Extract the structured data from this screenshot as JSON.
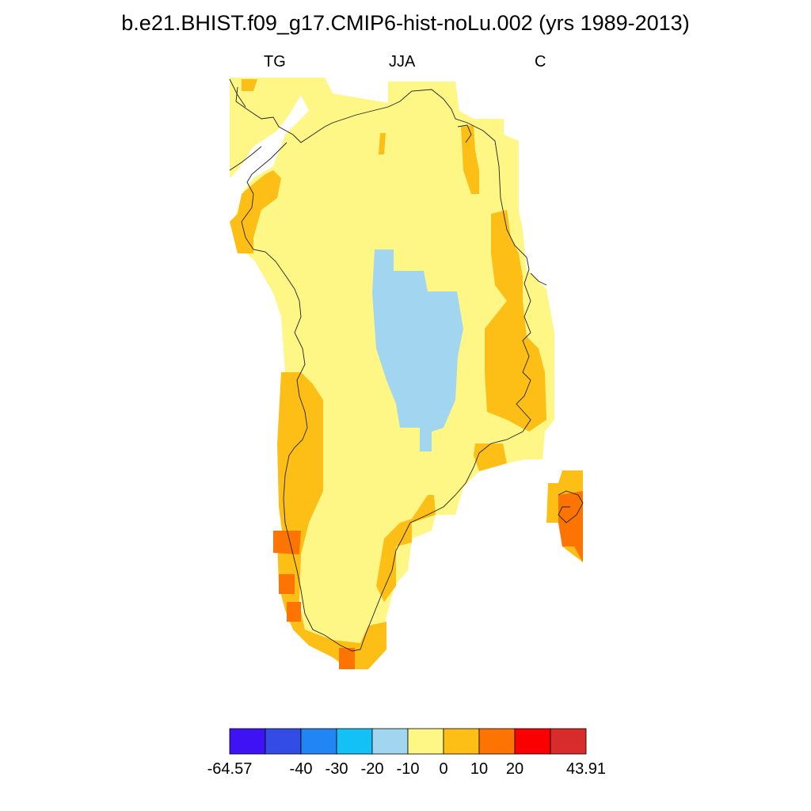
{
  "title": "b.e21.BHIST.f09_g17.CMIP6-hist-noLu.002 (yrs 1989-2013)",
  "subtitle_left": "TG",
  "subtitle_center": "JJA",
  "subtitle_right": "C",
  "colorbar": {
    "min_label": "-64.57",
    "max_label": "43.91",
    "tick_labels": [
      "-40",
      "-30",
      "-20",
      "-10",
      "0",
      "10",
      "20"
    ],
    "colors": [
      "#3f12f5",
      "#324ce5",
      "#2185f4",
      "#14c1f6",
      "#a2d6f0",
      "#fef685",
      "#fdbe16",
      "#fd7402",
      "#fb0000",
      "#d82b2b"
    ]
  },
  "map_colors": {
    "cold": "#a2d6f0",
    "mild": "#fef685",
    "warm": "#fdbe16",
    "hot": "#fd7402"
  }
}
